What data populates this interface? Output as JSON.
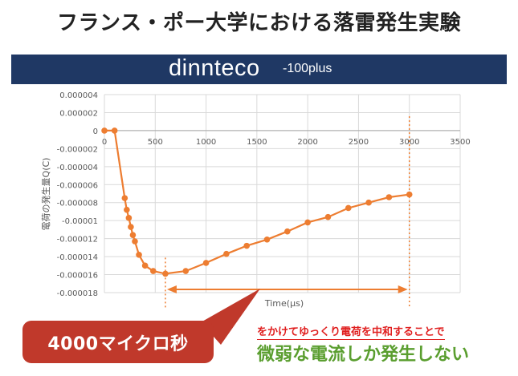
{
  "header": {
    "title": "フランス・ポー大学における落雷発生実験",
    "brand": "dinnteco",
    "brand_suffix": "-100plus"
  },
  "chart_data": {
    "type": "line",
    "ylabel": "電荷の発生量Q(C)",
    "xlabel": "Time(μs)",
    "xlim": [
      0,
      3500
    ],
    "ylim": [
      -1.8e-05,
      4e-06
    ],
    "x_ticks": [
      "0",
      "500",
      "1000",
      "1500",
      "2000",
      "2500",
      "3000",
      "3500"
    ],
    "y_ticks": [
      "0.000004",
      "0.000002",
      "0",
      "-0.000002",
      "-0.000004",
      "-0.000006",
      "-0.000008",
      "-0.00001",
      "-0.000012",
      "-0.000014",
      "-0.000016",
      "-0.000018"
    ],
    "grid": true,
    "series_color": "#ed7d31",
    "series": [
      {
        "x": [
          0,
          100,
          200,
          220,
          240,
          260,
          280,
          300,
          340,
          400,
          480,
          600,
          800,
          1000,
          1200,
          1400,
          1600,
          1800,
          2000,
          2200,
          2400,
          2600,
          2800,
          3000
        ],
        "y": [
          0,
          0,
          -7.5e-06,
          -8.8e-06,
          -9.7e-06,
          -1.07e-05,
          -1.16e-05,
          -1.23e-05,
          -1.38e-05,
          -1.5e-05,
          -1.56e-05,
          -1.59e-05,
          -1.56e-05,
          -1.47e-05,
          -1.37e-05,
          -1.28e-05,
          -1.21e-05,
          -1.12e-05,
          -1.02e-05,
          -9.6e-06,
          -8.6e-06,
          -8e-06,
          -7.4e-06,
          -7.1e-06
        ]
      }
    ],
    "span_start_x": 600,
    "span_end_x": 3000
  },
  "callout": {
    "text": "4000マイクロ秒"
  },
  "note": {
    "line1": "をかけてゆっくり電荷を中和することで",
    "line2": "微弱な電流しか発生しない"
  }
}
